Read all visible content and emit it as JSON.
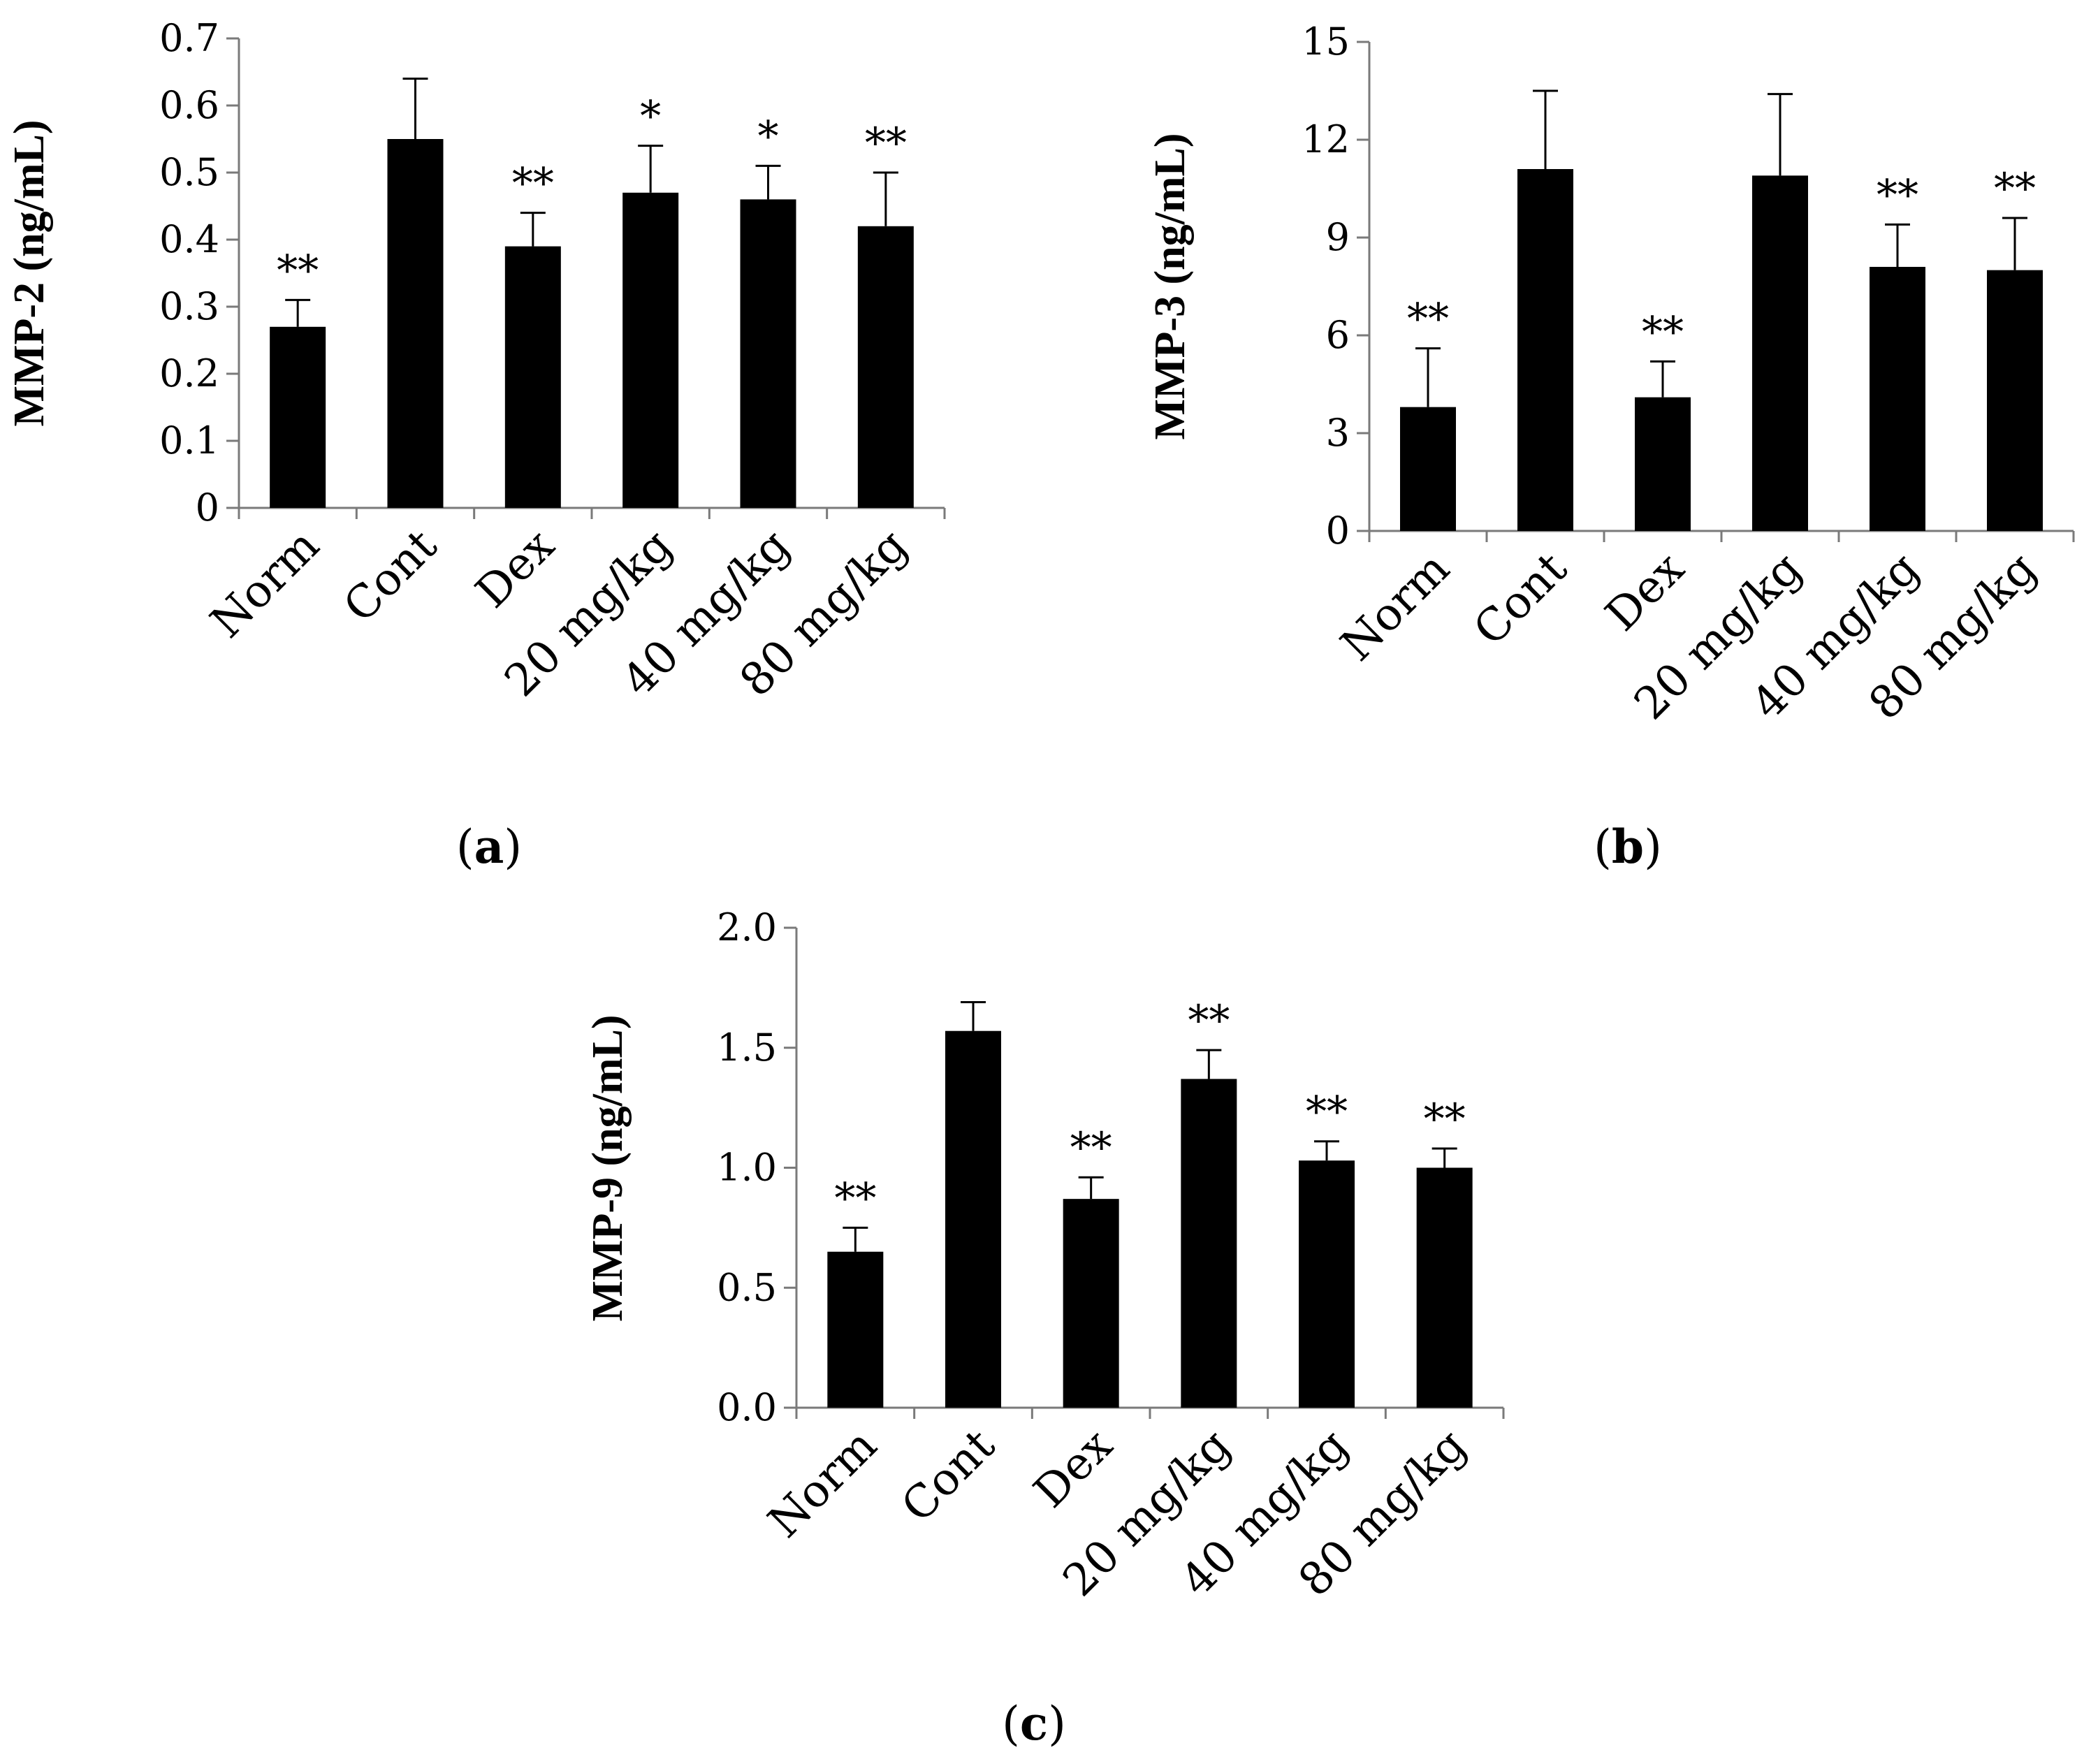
{
  "chart_data": [
    {
      "type": "bar",
      "panel": "a",
      "ylabel": "MMP-2 (ng/mL)",
      "categories": [
        "Norm",
        "Cont",
        "Dex",
        "20 mg/kg",
        "40 mg/kg",
        "80 mg/kg"
      ],
      "values": [
        0.27,
        0.55,
        0.39,
        0.47,
        0.46,
        0.42
      ],
      "errors": [
        0.04,
        0.09,
        0.05,
        0.07,
        0.05,
        0.08
      ],
      "significance": [
        "**",
        "",
        "**",
        "*",
        "*",
        "**"
      ],
      "ylim": [
        0,
        0.7
      ],
      "yticks": [
        0,
        0.1,
        0.2,
        0.3,
        0.4,
        0.5,
        0.6,
        0.7
      ],
      "ytick_labels": [
        "0",
        "0.1",
        "0.2",
        "0.3",
        "0.4",
        "0.5",
        "0.6",
        "0.7"
      ]
    },
    {
      "type": "bar",
      "panel": "b",
      "ylabel": "MMP-3 (ng/mL)",
      "categories": [
        "Norm",
        "Cont",
        "Dex",
        "20 mg/kg",
        "40 mg/kg",
        "80 mg/kg"
      ],
      "values": [
        3.8,
        11.1,
        4.1,
        10.9,
        8.1,
        8.0
      ],
      "errors": [
        1.8,
        2.4,
        1.1,
        2.5,
        1.3,
        1.6
      ],
      "significance": [
        "**",
        "",
        "**",
        "",
        "**",
        "**"
      ],
      "ylim": [
        0,
        15
      ],
      "yticks": [
        0,
        3,
        6,
        9,
        12,
        15
      ],
      "ytick_labels": [
        "0",
        "3",
        "6",
        "9",
        "12",
        "15"
      ]
    },
    {
      "type": "bar",
      "panel": "c",
      "ylabel": "MMP-9 (ng/mL)",
      "categories": [
        "Norm",
        "Cont",
        "Dex",
        "20 mg/kg",
        "40 mg/kg",
        "80 mg/kg"
      ],
      "values": [
        0.65,
        1.57,
        0.87,
        1.37,
        1.03,
        1.0
      ],
      "errors": [
        0.1,
        0.12,
        0.09,
        0.12,
        0.08,
        0.08
      ],
      "significance": [
        "**",
        "",
        "**",
        "**",
        "**",
        "**"
      ],
      "ylim": [
        0,
        2.0
      ],
      "yticks": [
        0,
        0.5,
        1.0,
        1.5,
        2.0
      ],
      "ytick_labels": [
        "0.0",
        "0.5",
        "1.0",
        "1.5",
        "2.0"
      ]
    }
  ]
}
